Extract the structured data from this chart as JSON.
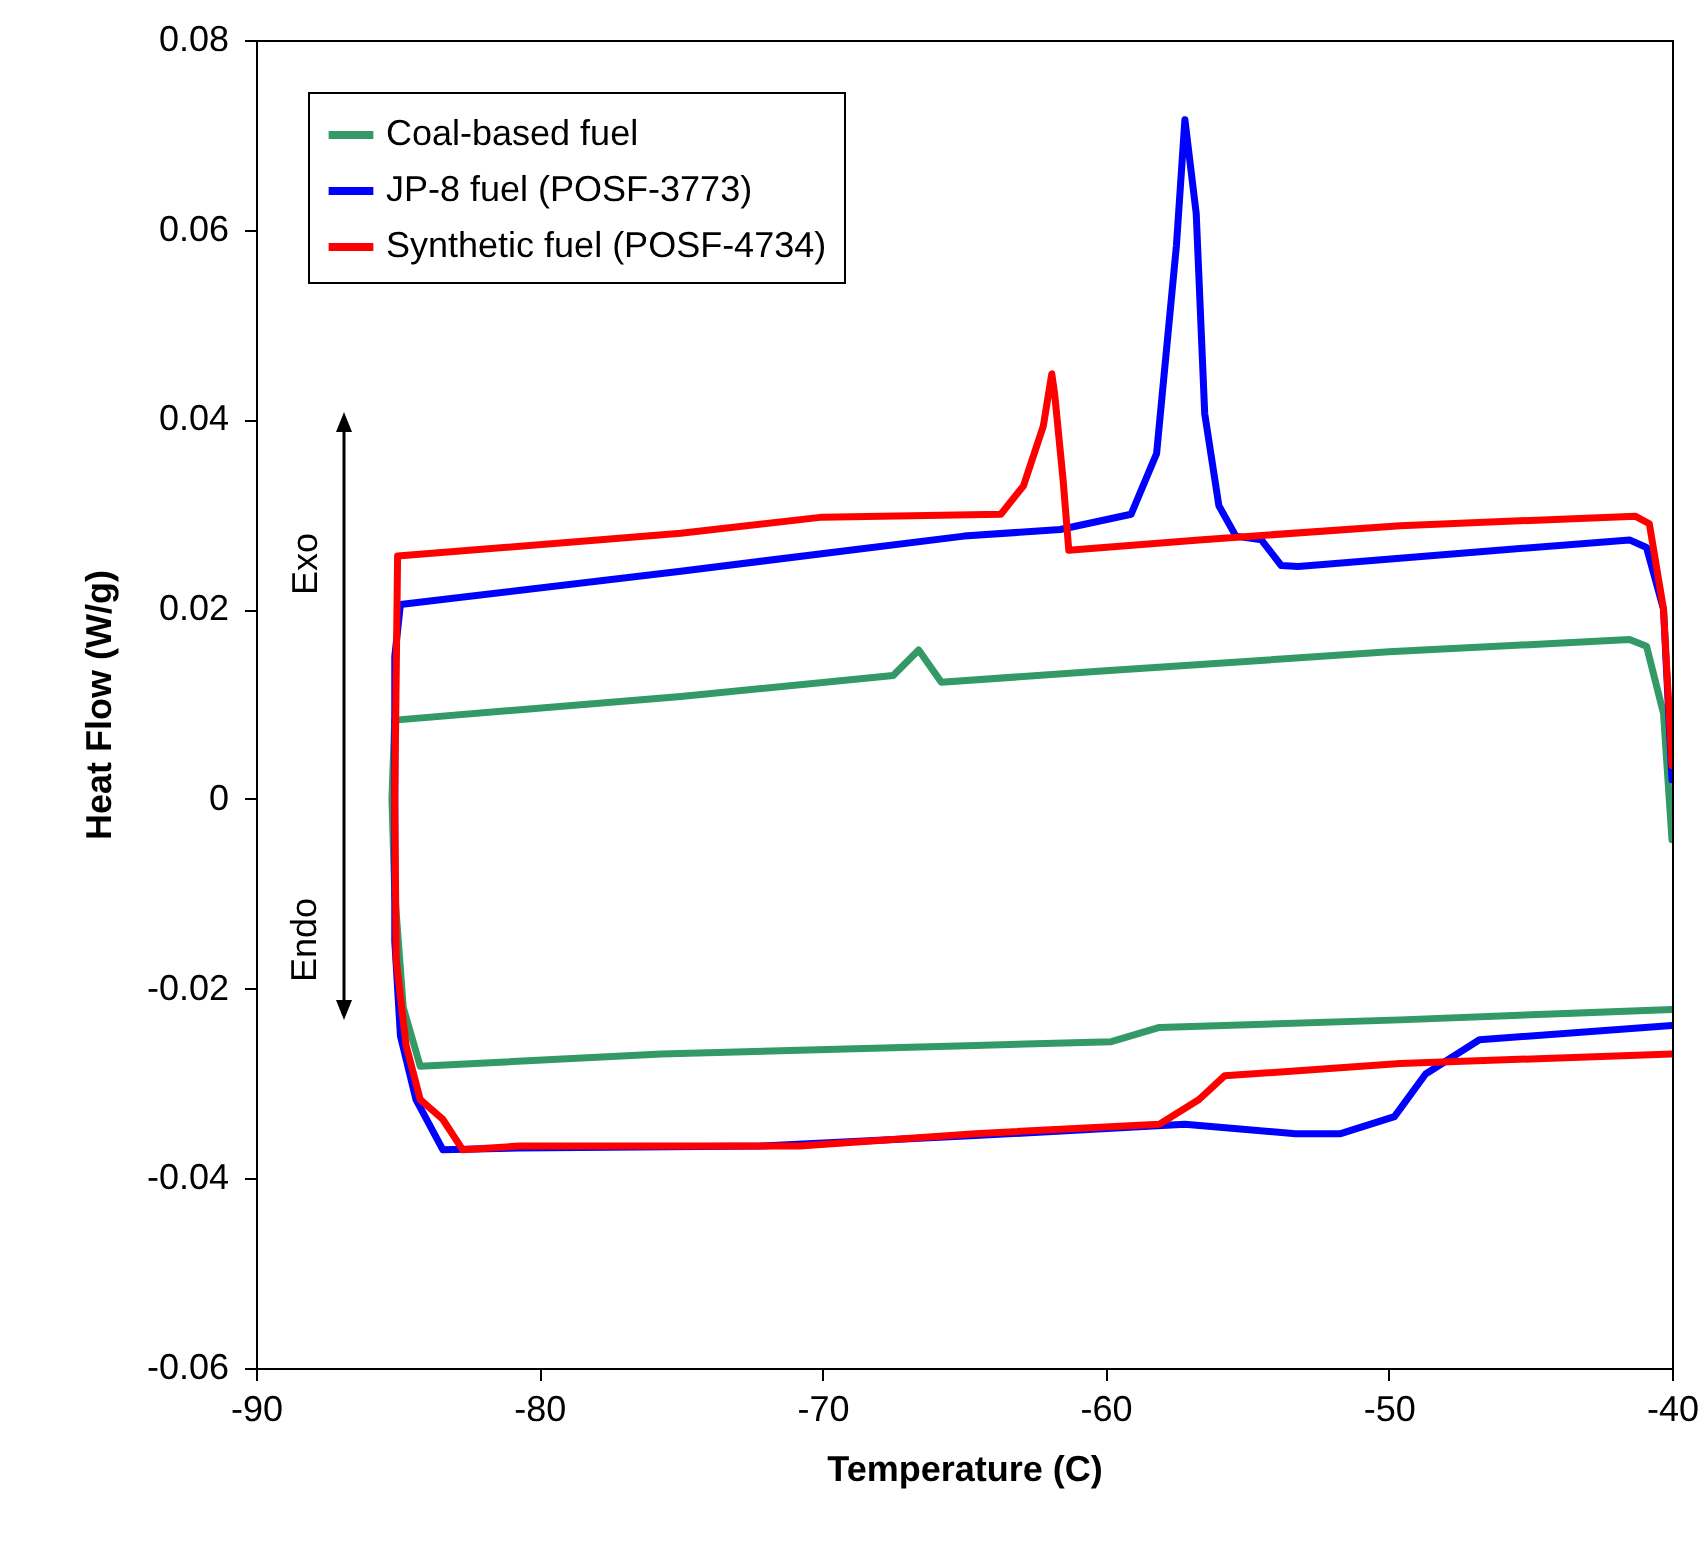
{
  "chart_data": {
    "type": "line",
    "xlabel": "Temperature (C)",
    "ylabel": "Heat Flow (W/g)",
    "xlim": [
      -90,
      -40
    ],
    "xticks": [
      -90,
      -80,
      -70,
      -60,
      -50,
      -40
    ],
    "ylim": [
      -0.06,
      0.08
    ],
    "yticks": [
      -0.06,
      -0.04,
      -0.02,
      0,
      0.02,
      0.04,
      0.06,
      0.08
    ],
    "legend": "top left",
    "annotations": [
      "Exo",
      "Endo"
    ],
    "series": [
      {
        "name": "Coal-based fuel",
        "color": "#339966",
        "x": [
          -40,
          -40.3,
          -40.9,
          -41.5,
          -50,
          -60,
          -65.8,
          -66.6,
          -67.5,
          -75,
          -85.1,
          -85.2,
          -85.1,
          -84.8,
          -84.2,
          -75.7,
          -64.6,
          -59.8,
          -58.1,
          -49.6,
          -40
        ],
        "values": [
          -0.0043,
          0.009,
          0.0161,
          0.0168,
          0.0155,
          0.0135,
          0.0123,
          0.0157,
          0.013,
          0.0108,
          0.0083,
          0.0,
          -0.01,
          -0.022,
          -0.0282,
          -0.0269,
          -0.026,
          -0.0256,
          -0.0241,
          -0.0233,
          -0.0222
        ]
      },
      {
        "name": "JP-8 fuel (POSF-3773)",
        "color": "#0000ff",
        "x": [
          -40,
          -40.3,
          -40.9,
          -41.5,
          -47,
          -53.2,
          -53.8,
          -54.5,
          -55.4,
          -56,
          -56.5,
          -56.8,
          -57.2,
          -57.5,
          -58.2,
          -59.1,
          -61.6,
          -65,
          -75,
          -84.9,
          -85.1,
          -85.1,
          -84.9,
          -84.35,
          -83.4,
          -80.7,
          -72.2,
          -64.6,
          -57.2,
          -53.3,
          -51.7,
          -49.8,
          -48.7,
          -46.8,
          -40
        ],
        "values": [
          0.002,
          0.02,
          0.0265,
          0.0273,
          0.026,
          0.0245,
          0.0246,
          0.0273,
          0.0277,
          0.0309,
          0.0406,
          0.0617,
          0.0716,
          0.0583,
          0.0364,
          0.03,
          0.0284,
          0.0277,
          0.024,
          0.0205,
          0.015,
          -0.015,
          -0.025,
          -0.0317,
          -0.037,
          -0.0368,
          -0.0366,
          -0.0355,
          -0.0343,
          -0.0353,
          -0.0353,
          -0.0335,
          -0.029,
          -0.0254,
          -0.0239
        ]
      },
      {
        "name": "Synthetic fuel (POSF-4734)",
        "color": "#ff0000",
        "x": [
          -40,
          -40.3,
          -40.8,
          -41.3,
          -49.6,
          -56.7,
          -61.3,
          -61.5,
          -61.8,
          -61.9,
          -62.2,
          -62.9,
          -63.7,
          -70,
          -75,
          -85,
          -85.1,
          -85.05,
          -84.7,
          -84.2,
          -83.4,
          -82.7,
          -80.7,
          -70.8,
          -64.6,
          -58.1,
          -56.7,
          -55.8,
          -49.6,
          -40
        ],
        "values": [
          0.0035,
          0.02,
          0.029,
          0.0298,
          0.0288,
          0.0273,
          0.0262,
          0.0336,
          0.0427,
          0.0448,
          0.0393,
          0.033,
          0.03,
          0.0297,
          0.028,
          0.0256,
          0.0,
          -0.017,
          -0.026,
          -0.0317,
          -0.0338,
          -0.037,
          -0.0366,
          -0.0366,
          -0.0353,
          -0.0343,
          -0.0317,
          -0.0292,
          -0.0279,
          -0.0269
        ]
      }
    ]
  }
}
